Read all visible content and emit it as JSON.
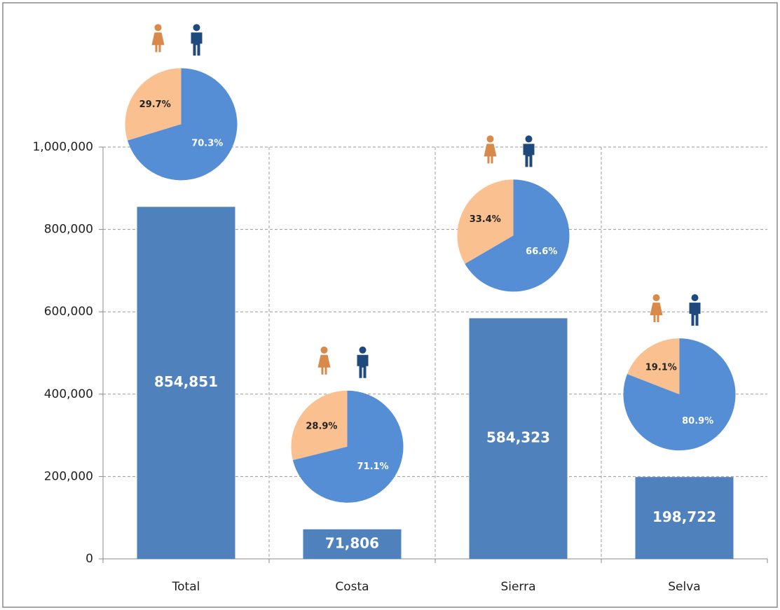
{
  "chart_data": {
    "type": "bar",
    "categories": [
      "Total",
      "Costa",
      "Sierra",
      "Selva"
    ],
    "values": [
      854851,
      71806,
      584323,
      198722
    ],
    "value_labels": [
      "854,851",
      "71,806",
      "584,323",
      "198,722"
    ],
    "color": "#4f81bd",
    "ylim": [
      0,
      1000000
    ],
    "yticks": [
      0,
      {
        "value": 200000,
        "label": "200,000"
      },
      {
        "value": 400000,
        "label": "400,000"
      },
      {
        "value": 600000,
        "label": "600,000"
      },
      {
        "value": 800000,
        "label": "800,000"
      },
      {
        "value": 1000000,
        "label": "1,000,000"
      }
    ],
    "grid": true,
    "pie_colors": [
      "#fac090",
      "#558ed5"
    ],
    "pies": [
      {
        "values": [
          29.7,
          70.3
        ],
        "value_labels": [
          "29.7%",
          "70.3%"
        ]
      },
      {
        "values": [
          28.9,
          71.1
        ],
        "value_labels": [
          "28.9%",
          "71.1%"
        ]
      },
      {
        "values": [
          33.4,
          66.6
        ],
        "value_labels": [
          "33.4%",
          "66.6%"
        ]
      },
      {
        "values": [
          19.1,
          80.9
        ],
        "value_labels": [
          "19.1%",
          "80.9%"
        ]
      }
    ]
  }
}
